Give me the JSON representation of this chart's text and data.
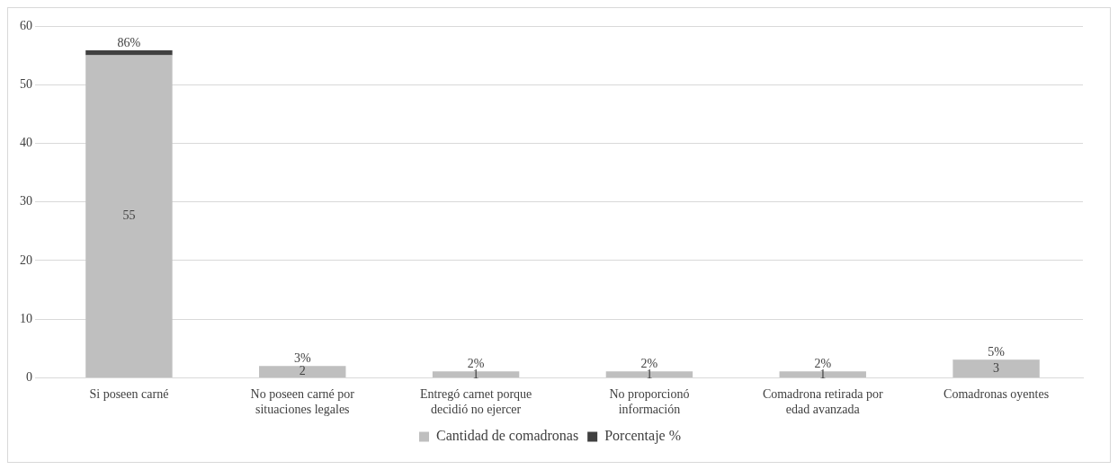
{
  "chart_data": {
    "type": "bar",
    "stacked": true,
    "categories": [
      "Si poseen carné",
      "No poseen carné por situaciones legales",
      "Entregó carnet porque decidió no ejercer",
      "No proporcionó información",
      "Comadrona retirada por edad avanzada",
      "Comadronas oyentes"
    ],
    "series": [
      {
        "name": "Cantidad de comadronas",
        "color": "#bfbfbf",
        "values": [
          55,
          2,
          1,
          1,
          1,
          3
        ],
        "value_labels": [
          "55",
          "2",
          "1",
          "1",
          "1",
          "3"
        ]
      },
      {
        "name": "Porcentaje %",
        "color": "#404040",
        "values": [
          0.86,
          0.03,
          0.02,
          0.02,
          0.02,
          0.05
        ],
        "value_labels": [
          "86%",
          "3%",
          "2%",
          "2%",
          "2%",
          "5%"
        ]
      }
    ],
    "ylim": [
      0,
      60
    ],
    "yticks": [
      0,
      10,
      20,
      30,
      40,
      50,
      60
    ],
    "grid": "y",
    "legend": "bottom"
  }
}
